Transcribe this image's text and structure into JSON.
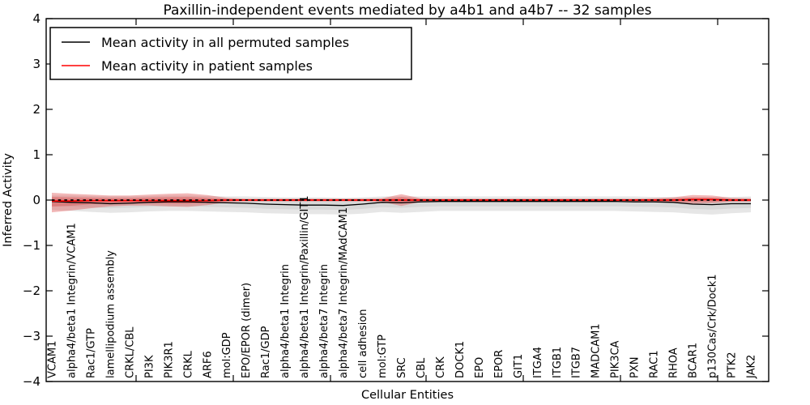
{
  "title": "Paxillin-independent events mediated by a4b1 and a4b7 -- 32 samples",
  "axes": {
    "x_label": "Cellular Entities",
    "y_label": "Inferred Activity",
    "y_ticks": [
      {
        "value": 4,
        "label": "4"
      },
      {
        "value": 3,
        "label": "3"
      },
      {
        "value": 2,
        "label": "2"
      },
      {
        "value": 1,
        "label": "1"
      },
      {
        "value": 0,
        "label": "0"
      },
      {
        "value": -1,
        "label": "−1"
      },
      {
        "value": -2,
        "label": "−2"
      },
      {
        "value": -3,
        "label": "−3"
      },
      {
        "value": -4,
        "label": "−4"
      }
    ]
  },
  "legend": {
    "items": [
      {
        "label": "Mean activity in all permuted samples",
        "color": "#000000"
      },
      {
        "label": "Mean activity in patient samples",
        "color": "#ff0000"
      }
    ]
  },
  "colors": {
    "permuted_line": "#000000",
    "permuted_band": "#c8c8c8",
    "patient_line": "#ff0000",
    "patient_band": "#dd4444",
    "zero_line": "#000000",
    "frame": "#000000"
  },
  "chart_data": {
    "type": "line",
    "title": "Paxillin-independent events mediated by a4b1 and a4b7 -- 32 samples",
    "xlabel": "Cellular Entities",
    "ylabel": "Inferred Activity",
    "ylim": [
      -4,
      4
    ],
    "yticks": [
      4,
      3,
      2,
      1,
      0,
      -1,
      -2,
      -3,
      -4
    ],
    "grid": false,
    "legend_position": "upper left",
    "zero_reference_line": 0,
    "categories": [
      "VCAM1",
      "alpha4/beta1 Integrin/VCAM1",
      "Rac1/GTP",
      "lamellipodium assembly",
      "CRKL/CBL",
      "PI3K",
      "PIK3R1",
      "CRKL",
      "ARF6",
      "mol:GDP",
      "EPO/EPOR (dimer)",
      "Rac1/GDP",
      "alpha4/beta1 Integrin",
      "alpha4/beta1 Integrin/Paxillin/GIT1",
      "alpha4/beta7 Integrin",
      "alpha4/beta7 Integrin/MAdCAM1",
      "cell adhesion",
      "mol:GTP",
      "SRC",
      "CBL",
      "CRK",
      "DOCK1",
      "EPO",
      "EPOR",
      "GIT1",
      "ITGA4",
      "ITGB1",
      "ITGB7",
      "MADCAM1",
      "PIK3CA",
      "PXN",
      "RAC1",
      "RHOA",
      "BCAR1",
      "p130Cas/Crk/Dock1",
      "PTK2",
      "JAK2"
    ],
    "series": [
      {
        "name": "Mean activity in all permuted samples",
        "kind": "line",
        "color": "#000000",
        "values": [
          -0.03,
          -0.05,
          -0.06,
          -0.08,
          -0.07,
          -0.05,
          -0.04,
          -0.04,
          -0.05,
          -0.06,
          -0.07,
          -0.09,
          -0.1,
          -0.11,
          -0.11,
          -0.12,
          -0.09,
          -0.05,
          -0.06,
          -0.04,
          -0.03,
          -0.03,
          -0.03,
          -0.03,
          -0.03,
          -0.03,
          -0.03,
          -0.03,
          -0.03,
          -0.03,
          -0.04,
          -0.04,
          -0.05,
          -0.09,
          -0.1,
          -0.08,
          -0.08
        ]
      },
      {
        "name": "Permuted samples confidence band",
        "kind": "band",
        "color": "#c8c8c8",
        "upper": [
          0.1,
          0.1,
          0.09,
          0.08,
          0.08,
          0.09,
          0.1,
          0.1,
          0.09,
          0.08,
          0.08,
          0.07,
          0.06,
          0.06,
          0.06,
          0.05,
          0.06,
          0.08,
          0.08,
          0.08,
          0.08,
          0.08,
          0.08,
          0.08,
          0.08,
          0.08,
          0.08,
          0.08,
          0.08,
          0.08,
          0.08,
          0.07,
          0.07,
          0.06,
          0.06,
          0.07,
          0.08
        ],
        "lower": [
          -0.22,
          -0.24,
          -0.26,
          -0.28,
          -0.27,
          -0.25,
          -0.24,
          -0.24,
          -0.25,
          -0.26,
          -0.27,
          -0.29,
          -0.3,
          -0.31,
          -0.31,
          -0.32,
          -0.3,
          -0.26,
          -0.28,
          -0.26,
          -0.24,
          -0.24,
          -0.24,
          -0.24,
          -0.24,
          -0.24,
          -0.24,
          -0.24,
          -0.24,
          -0.24,
          -0.25,
          -0.26,
          -0.27,
          -0.3,
          -0.32,
          -0.29,
          -0.27
        ]
      },
      {
        "name": "Mean activity in patient samples",
        "kind": "line",
        "color": "#ff0000",
        "values": [
          -0.02,
          -0.02,
          -0.01,
          -0.01,
          -0.01,
          -0.01,
          -0.01,
          -0.01,
          -0.01,
          0,
          0,
          0,
          0,
          0,
          0,
          0,
          0,
          0,
          0,
          0,
          0,
          0,
          0,
          0,
          0,
          0,
          0,
          0,
          0,
          0,
          0,
          0,
          0,
          0.01,
          0.01,
          0,
          0
        ]
      },
      {
        "name": "Patient samples confidence band",
        "kind": "band",
        "color": "#dd4444",
        "upper": [
          0.16,
          0.14,
          0.12,
          0.1,
          0.1,
          0.12,
          0.14,
          0.15,
          0.11,
          0.05,
          0.03,
          0.03,
          0.03,
          0.03,
          0.03,
          0.03,
          0.03,
          0.04,
          0.13,
          0.04,
          0.03,
          0.03,
          0.03,
          0.03,
          0.03,
          0.03,
          0.03,
          0.03,
          0.03,
          0.03,
          0.03,
          0.04,
          0.06,
          0.11,
          0.1,
          0.05,
          0.04
        ],
        "lower": [
          -0.27,
          -0.23,
          -0.18,
          -0.14,
          -0.12,
          -0.12,
          -0.14,
          -0.15,
          -0.11,
          -0.05,
          -0.03,
          -0.03,
          -0.03,
          -0.03,
          -0.03,
          -0.03,
          -0.03,
          -0.04,
          -0.13,
          -0.04,
          -0.03,
          -0.03,
          -0.03,
          -0.03,
          -0.03,
          -0.03,
          -0.03,
          -0.03,
          -0.03,
          -0.03,
          -0.03,
          -0.04,
          -0.06,
          -0.08,
          -0.07,
          -0.04,
          -0.04
        ]
      }
    ]
  }
}
